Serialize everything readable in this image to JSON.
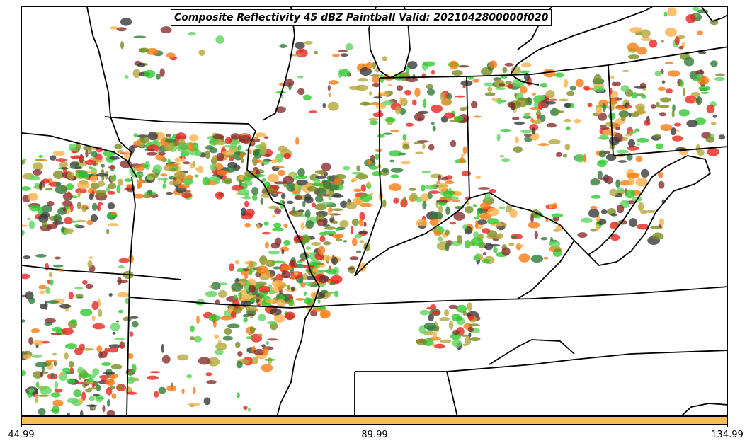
{
  "title": "Composite Reflectivity 45 dBZ Paintball Valid: 2021042800000f020",
  "colorbar": {
    "color": "#fbbd5a",
    "ticks": [
      "44.99",
      "89.99",
      "134.99"
    ]
  },
  "map": {
    "background": "#ffffff",
    "boundary_color": "#000000",
    "member_colors": [
      "#e8261f",
      "#f77b14",
      "#2ec92e",
      "#7c8c22",
      "#8a2e2e",
      "#3a3a3a",
      "#fbb04a",
      "#5fd45f",
      "#b5a83c",
      "#2f7a3a"
    ]
  }
}
